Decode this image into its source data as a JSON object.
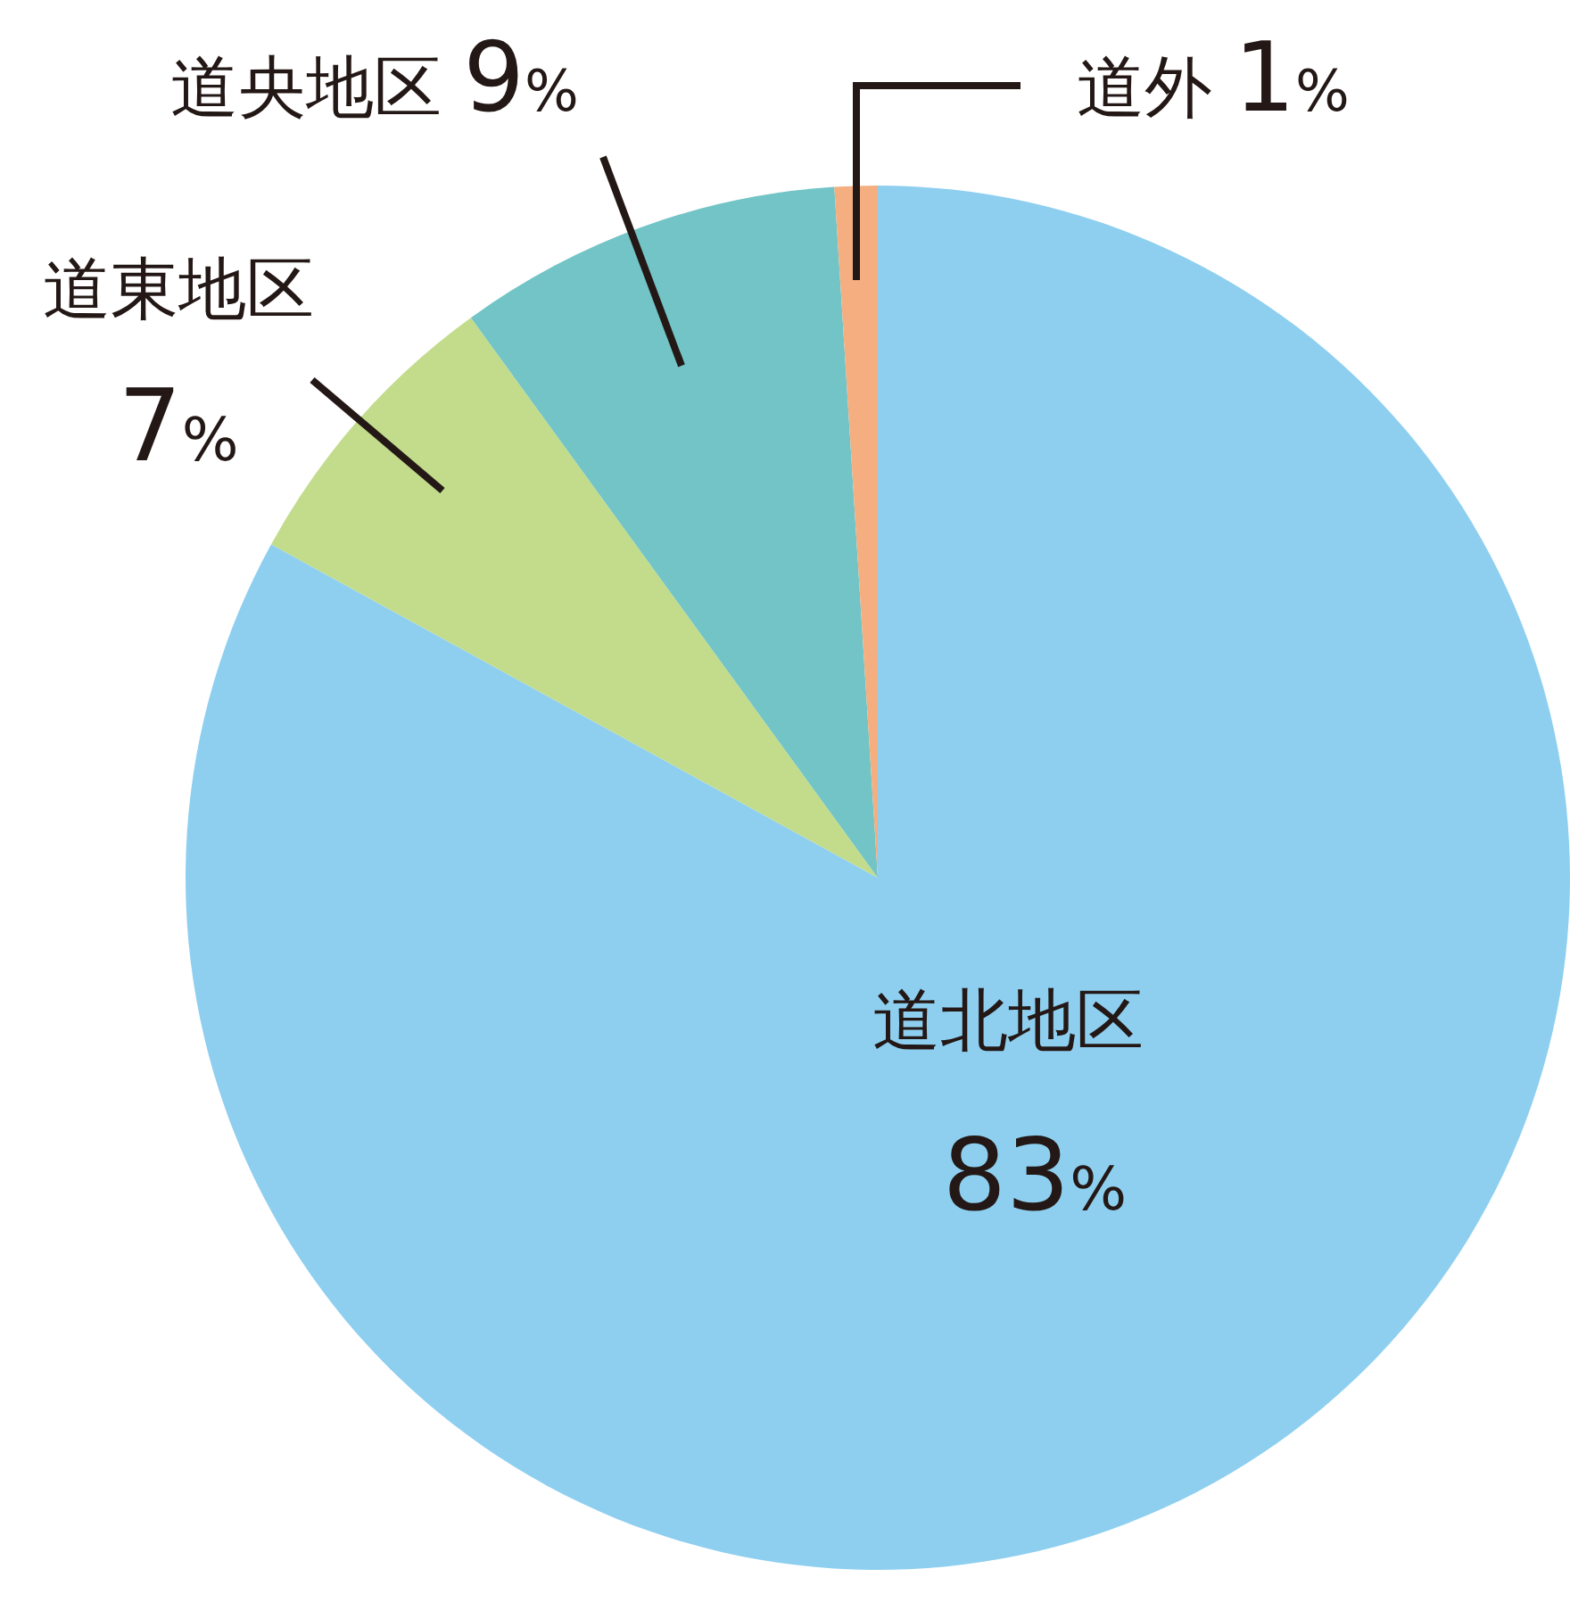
{
  "chart_data": {
    "type": "pie",
    "categories": [
      "道北地区",
      "道東地区",
      "道央地区",
      "道外"
    ],
    "values": [
      83,
      7,
      9,
      1
    ],
    "value_labels": [
      "83%",
      "7%",
      "9%",
      "1%"
    ],
    "colors": [
      "#8ecff0",
      "#c2dc8c",
      "#72c4c6",
      "#f4ae80"
    ]
  }
}
